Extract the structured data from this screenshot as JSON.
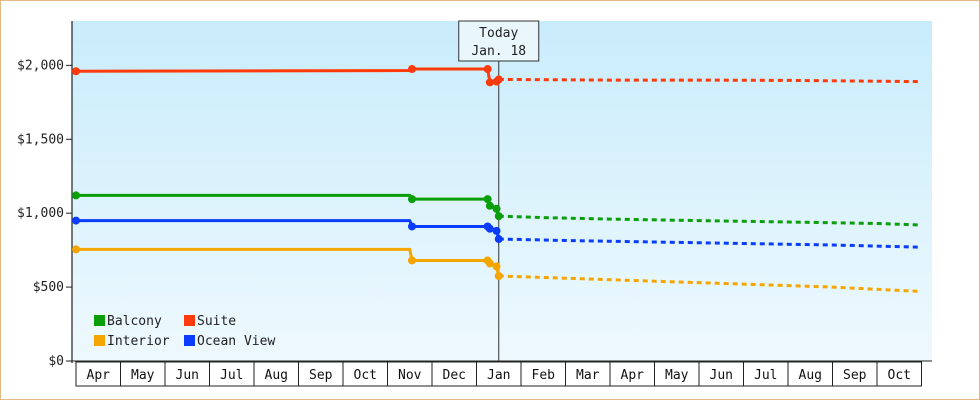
{
  "chart_data": {
    "type": "line",
    "title": "",
    "xlabel": "",
    "ylabel": "",
    "x_ticks": [
      "Apr",
      "May",
      "Jun",
      "Jul",
      "Aug",
      "Sep",
      "Oct",
      "Nov",
      "Dec",
      "Jan",
      "Feb",
      "Mar",
      "Apr",
      "May",
      "Jun",
      "Jul",
      "Aug",
      "Sep",
      "Oct"
    ],
    "y_ticks": [
      "$0",
      "$500",
      "$1,000",
      "$1,500",
      "$2,000"
    ],
    "ylim": [
      0,
      2300
    ],
    "today_marker": {
      "line1": "Today",
      "line2": "Jan. 18",
      "x_month": 9.5
    },
    "legend": {
      "placement": "bottom-left",
      "columns": 2
    },
    "series": [
      {
        "name": "Balcony",
        "color": "#0a9e0a",
        "history": [
          [
            0,
            1120
          ],
          [
            7.5,
            1120
          ],
          [
            7.55,
            1095
          ],
          [
            9.25,
            1095
          ],
          [
            9.3,
            1050
          ],
          [
            9.45,
            1030
          ],
          [
            9.5,
            980
          ]
        ],
        "projection": [
          [
            9.5,
            980
          ],
          [
            10.5,
            970
          ],
          [
            12,
            960
          ],
          [
            14,
            950
          ],
          [
            16,
            940
          ],
          [
            18,
            930
          ],
          [
            19,
            920
          ]
        ]
      },
      {
        "name": "Suite",
        "color": "#ff3a0a",
        "history": [
          [
            0,
            1960
          ],
          [
            7.5,
            1965
          ],
          [
            7.55,
            1975
          ],
          [
            9.25,
            1975
          ],
          [
            9.3,
            1885
          ],
          [
            9.45,
            1890
          ],
          [
            9.5,
            1905
          ]
        ],
        "projection": [
          [
            9.5,
            1905
          ],
          [
            12,
            1900
          ],
          [
            14,
            1900
          ],
          [
            16,
            1898
          ],
          [
            19,
            1890
          ]
        ]
      },
      {
        "name": "Interior",
        "color": "#f5a500",
        "history": [
          [
            0,
            755
          ],
          [
            7.5,
            755
          ],
          [
            7.55,
            680
          ],
          [
            9.25,
            680
          ],
          [
            9.3,
            660
          ],
          [
            9.45,
            640
          ],
          [
            9.5,
            575
          ]
        ],
        "projection": [
          [
            9.5,
            575
          ],
          [
            11,
            560
          ],
          [
            13,
            540
          ],
          [
            15,
            520
          ],
          [
            17,
            500
          ],
          [
            19,
            470
          ]
        ]
      },
      {
        "name": "Ocean View",
        "color": "#0a3cff",
        "history": [
          [
            0,
            950
          ],
          [
            7.5,
            950
          ],
          [
            7.55,
            910
          ],
          [
            9.25,
            910
          ],
          [
            9.3,
            895
          ],
          [
            9.45,
            880
          ],
          [
            9.5,
            825
          ]
        ],
        "projection": [
          [
            9.5,
            825
          ],
          [
            11,
            815
          ],
          [
            13,
            805
          ],
          [
            15,
            795
          ],
          [
            17,
            785
          ],
          [
            19,
            770
          ]
        ]
      }
    ]
  }
}
